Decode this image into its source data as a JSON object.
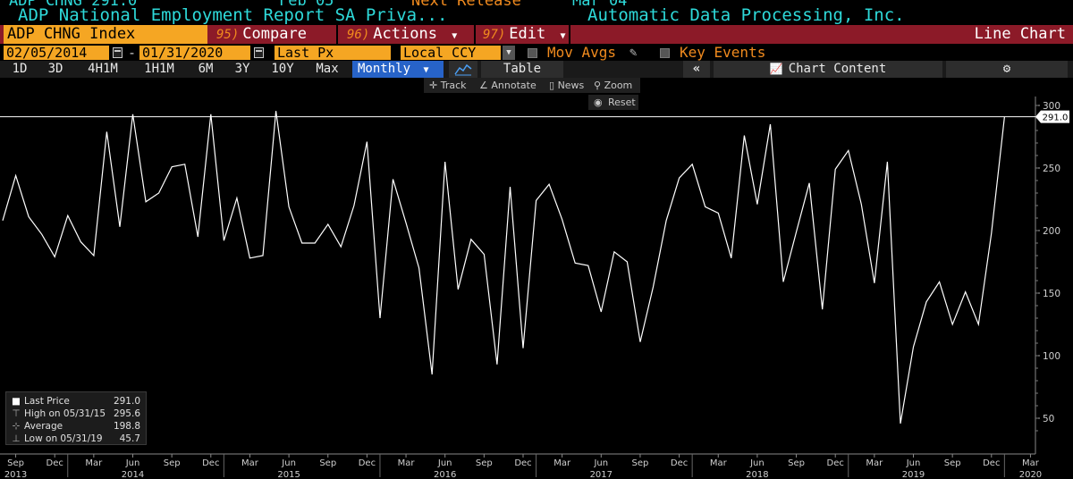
{
  "header": {
    "title": "ADP National Employment Report SA Priva...",
    "company": "Automatic Data Processing, Inc."
  },
  "commandbar": {
    "ticker": "ADP CHNG Index",
    "compare": {
      "num": "95)",
      "label": "Compare"
    },
    "actions": {
      "num": "96)",
      "label": "Actions"
    },
    "edit": {
      "num": "97)",
      "label": "Edit"
    },
    "chart_type": "Line Chart"
  },
  "settings": {
    "start_date": "02/05/2014",
    "end_date": "01/31/2020",
    "separator": "-",
    "price_field": "Last Px",
    "currency": "Local CCY",
    "mov_avgs": "Mov Avgs",
    "key_events": "Key Events"
  },
  "ranges": [
    "1D",
    "3D",
    "4H1M",
    "1H1M",
    "6M",
    "3Y",
    "10Y",
    "Max"
  ],
  "periodicity": "Monthly",
  "table_label": "Table",
  "chart_content_label": "Chart Content",
  "toolbar": {
    "track": "Track",
    "annotate": "Annotate",
    "news": "News",
    "zoom": "Zoom",
    "reset": "Reset"
  },
  "legend": {
    "last_price_label": "Last Price",
    "last_price_value": "291.0",
    "high_label": "High on 05/31/15",
    "high_value": "295.6",
    "average_label": "Average",
    "average_value": "198.8",
    "low_label": "Low on 05/31/19",
    "low_value": "45.7"
  },
  "colors": {
    "background": "#000000",
    "line": "#ffffff",
    "accent_orange": "#f5a623",
    "command_bar": "#8c1a28",
    "title_cyan": "#2ed9d9",
    "selected_blue": "#2763c8"
  },
  "chart_data": {
    "type": "line",
    "ylim": [
      30,
      310
    ],
    "yticks": [
      50,
      100,
      150,
      200,
      250,
      300
    ],
    "last_value_label": "291.0",
    "x_month_labels": [
      "Sep",
      "Dec",
      "Mar",
      "Jun",
      "Sep",
      "Dec",
      "Mar",
      "Jun",
      "Sep",
      "Dec",
      "Mar",
      "Jun",
      "Sep",
      "Dec",
      "Mar",
      "Jun",
      "Sep",
      "Dec",
      "Mar",
      "Jun",
      "Sep",
      "Dec",
      "Mar",
      "Jun",
      "Sep",
      "Dec",
      "Mar"
    ],
    "x_year_labels": [
      "2013",
      "2014",
      "2015",
      "2016",
      "2017",
      "2018",
      "2019",
      "2020"
    ],
    "series": [
      {
        "x": [
          "2013-08",
          "2013-09",
          "2013-10",
          "2013-11",
          "2013-12",
          "2014-01",
          "2014-02",
          "2014-03",
          "2014-04",
          "2014-05",
          "2014-06",
          "2014-07",
          "2014-08",
          "2014-09",
          "2014-10",
          "2014-11",
          "2014-12",
          "2015-01",
          "2015-02",
          "2015-03",
          "2015-04",
          "2015-05",
          "2015-06",
          "2015-07",
          "2015-08",
          "2015-09",
          "2015-10",
          "2015-11",
          "2015-12",
          "2016-01",
          "2016-02",
          "2016-03",
          "2016-04",
          "2016-05",
          "2016-06",
          "2016-07",
          "2016-08",
          "2016-09",
          "2016-10",
          "2016-11",
          "2016-12",
          "2017-01",
          "2017-02",
          "2017-03",
          "2017-04",
          "2017-05",
          "2017-06",
          "2017-07",
          "2017-08",
          "2017-09",
          "2017-10",
          "2017-11",
          "2017-12",
          "2018-01",
          "2018-02",
          "2018-03",
          "2018-04",
          "2018-05",
          "2018-06",
          "2018-07",
          "2018-08",
          "2018-09",
          "2018-10",
          "2018-11",
          "2018-12",
          "2019-01",
          "2019-02",
          "2019-03",
          "2019-04",
          "2019-05",
          "2019-06",
          "2019-07",
          "2019-08",
          "2019-09",
          "2019-10",
          "2019-11",
          "2019-12",
          "2020-01"
        ],
        "values": [
          208,
          244,
          211,
          197,
          179,
          212,
          191,
          180,
          279,
          203,
          293,
          223,
          230,
          251,
          253,
          195,
          293,
          192,
          226,
          178,
          180,
          295.6,
          219,
          190,
          190,
          205,
          187,
          220,
          271,
          130,
          241,
          206,
          170,
          85,
          255,
          153,
          193,
          181,
          93,
          235,
          106,
          224,
          237,
          209,
          174,
          172,
          135,
          183,
          175,
          111,
          155,
          208,
          242,
          253,
          219,
          214,
          178,
          276,
          221,
          285,
          159,
          199,
          238,
          137,
          249,
          264,
          221,
          158,
          255,
          45.7,
          107,
          143,
          159,
          125,
          151,
          125,
          198,
          291
        ]
      }
    ]
  }
}
